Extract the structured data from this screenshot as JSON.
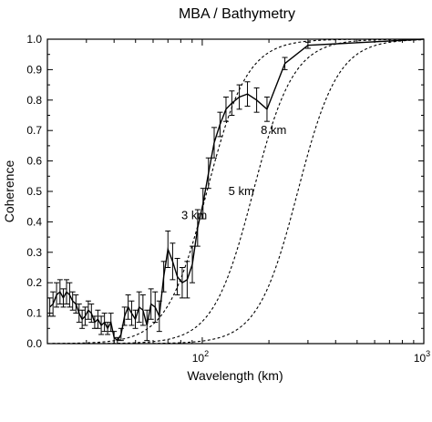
{
  "chart_data": {
    "type": "line",
    "title": "MBA / Bathymetry",
    "xlabel": "Wavelength (km)",
    "ylabel": "Coherence",
    "xscale": "log",
    "xlim": [
      20,
      1000
    ],
    "ylim": [
      0,
      1
    ],
    "x_ticks": [
      {
        "value": 100,
        "base": "10",
        "exp": "2"
      },
      {
        "value": 1000,
        "base": "10",
        "exp": "3"
      }
    ],
    "y_ticks": [
      "0.0",
      "0.1",
      "0.2",
      "0.3",
      "0.4",
      "0.5",
      "0.6",
      "0.7",
      "0.8",
      "0.9",
      "1.0"
    ],
    "grid": false,
    "observed": {
      "x": [
        20.5,
        21.2,
        22,
        22.8,
        23.6,
        24.4,
        25.2,
        26,
        26.9,
        27.8,
        28.7,
        29.6,
        30.6,
        31.6,
        32.7,
        33.8,
        35,
        36.2,
        37.4,
        38.7,
        40,
        41.4,
        43,
        44.6,
        46.3,
        48,
        49.9,
        51.9,
        54,
        56.3,
        58.7,
        61.3,
        64,
        67,
        70,
        73.5,
        77.2,
        81.2,
        85.5,
        90.2,
        95.3,
        100.8,
        106.7,
        113.2,
        120.3,
        128,
        136,
        147,
        160,
        176,
        196,
        236,
        300,
        1000
      ],
      "y": [
        0.12,
        0.13,
        0.16,
        0.17,
        0.15,
        0.17,
        0.16,
        0.14,
        0.13,
        0.1,
        0.08,
        0.09,
        0.11,
        0.1,
        0.07,
        0.08,
        0.06,
        0.07,
        0.05,
        0.07,
        0.02,
        0.01,
        0.03,
        0.09,
        0.12,
        0.1,
        0.08,
        0.12,
        0.11,
        0.06,
        0.13,
        0.12,
        0.09,
        0.22,
        0.31,
        0.27,
        0.22,
        0.2,
        0.21,
        0.26,
        0.38,
        0.46,
        0.56,
        0.66,
        0.72,
        0.77,
        0.79,
        0.81,
        0.82,
        0.8,
        0.77,
        0.92,
        0.98,
        1.0
      ],
      "err": [
        0.03,
        0.04,
        0.04,
        0.04,
        0.03,
        0.04,
        0.04,
        0.03,
        0.03,
        0.03,
        0.03,
        0.03,
        0.03,
        0.03,
        0.02,
        0.03,
        0.03,
        0.03,
        0.02,
        0.03,
        0.02,
        0.01,
        0.02,
        0.03,
        0.04,
        0.04,
        0.03,
        0.05,
        0.05,
        0.05,
        0.05,
        0.05,
        0.05,
        0.05,
        0.06,
        0.06,
        0.06,
        0.05,
        0.06,
        0.06,
        0.06,
        0.05,
        0.05,
        0.05,
        0.04,
        0.04,
        0.04,
        0.04,
        0.04,
        0.04,
        0.04,
        0.02,
        0.01,
        0
      ]
    },
    "model_curves": [
      {
        "label": "3 km",
        "lambda_half": 105,
        "steepness": 4.8,
        "label_x": 92,
        "label_y": 0.42
      },
      {
        "label": "5 km",
        "lambda_half": 170,
        "steepness": 4.8,
        "label_x": 150,
        "label_y": 0.5
      },
      {
        "label": "8 km",
        "lambda_half": 270,
        "steepness": 4.8,
        "label_x": 210,
        "label_y": 0.7
      }
    ],
    "annotations": [
      "3 km",
      "5 km",
      "8 km"
    ]
  }
}
